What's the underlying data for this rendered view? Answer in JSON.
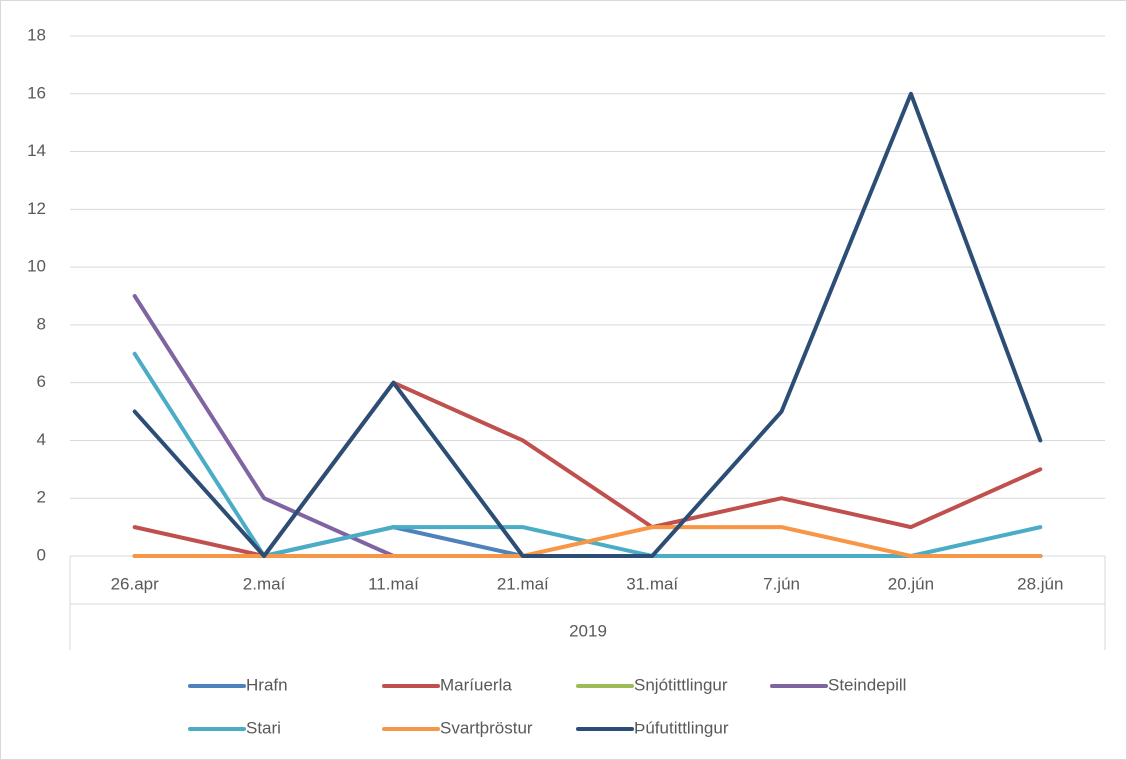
{
  "chart_data": {
    "type": "line",
    "categories": [
      "26.apr",
      "2.maí",
      "11.maí",
      "21.maí",
      "31.maí",
      "7.jún",
      "20.jún",
      "28.jún"
    ],
    "category_group": "2019",
    "ylim": [
      0,
      18
    ],
    "yticks": [
      0,
      2,
      4,
      6,
      8,
      10,
      12,
      14,
      16,
      18
    ],
    "grid": true,
    "legend": "bottom",
    "series": [
      {
        "name": "Hrafn",
        "color": "#4f81bd",
        "values": [
          0,
          0,
          1,
          0,
          0,
          0,
          0,
          0
        ]
      },
      {
        "name": "Maríuerla",
        "color": "#c0504d",
        "values": [
          1,
          0,
          6,
          4,
          1,
          2,
          1,
          3
        ]
      },
      {
        "name": "Snjótittlingur",
        "color": "#9bbb59",
        "values": [
          0,
          0,
          0,
          0,
          0,
          0,
          0,
          0
        ]
      },
      {
        "name": "Steindepill",
        "color": "#8064a2",
        "values": [
          9,
          2,
          0,
          0,
          0,
          0,
          0,
          0
        ]
      },
      {
        "name": "Stari",
        "color": "#4bacc6",
        "values": [
          7,
          0,
          1,
          1,
          0,
          0,
          0,
          1
        ]
      },
      {
        "name": "Svartþröstur",
        "color": "#f79646",
        "values": [
          0,
          0,
          0,
          0,
          1,
          1,
          0,
          0
        ]
      },
      {
        "name": "Þúfutittlingur",
        "color": "#2c4d75",
        "values": [
          5,
          0,
          6,
          0,
          0,
          5,
          16,
          4
        ]
      }
    ]
  }
}
